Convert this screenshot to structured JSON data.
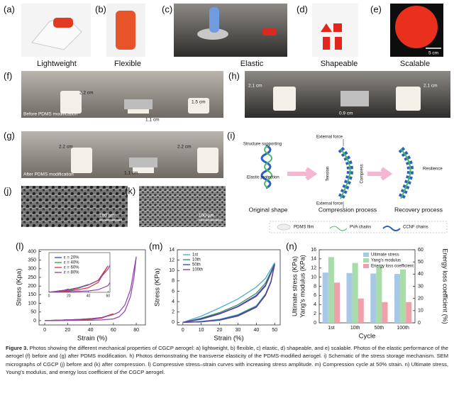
{
  "panels": [
    {
      "label": "(a)",
      "caption": "Lightweight"
    },
    {
      "label": "(b)",
      "caption": "Flexible"
    },
    {
      "label": "(c)",
      "caption": "Elastic"
    },
    {
      "label": "(d)",
      "caption": "Shapeable"
    },
    {
      "label": "(e)",
      "caption": "Scalable",
      "scale_bar": "5 cm"
    },
    {
      "label": "(f)",
      "stage": "Before PDMS modification",
      "heights": [
        "2.2 cm",
        "1.1 cm",
        "1.5 cm"
      ]
    },
    {
      "label": "(h)",
      "heights": [
        "2.1 cm",
        "0.9 cm",
        "2.1 cm"
      ]
    },
    {
      "label": "(g)",
      "stage": "After PDMS modification",
      "heights": [
        "2.2 cm",
        "1.1 cm",
        "2.2 cm"
      ]
    },
    {
      "label": "(i)"
    },
    {
      "label": "(j)",
      "scale_bar": "100 µm"
    },
    {
      "label": "(k)",
      "scale_bar": "100 µm"
    },
    {
      "label": "(l)"
    },
    {
      "label": "(m)"
    },
    {
      "label": "(n)"
    }
  ],
  "schematic": {
    "labels": [
      "Structure supporting",
      "Elastic protection",
      "External force",
      "Tension",
      "Compress",
      "External force",
      "Resilience"
    ],
    "stages": [
      "Original shape",
      "Compression process",
      "Recovery process"
    ],
    "legend": [
      "PDMS film",
      "PVA chains",
      "CCNF chains"
    ]
  },
  "chart_data": [
    {
      "type": "line",
      "xlabel": "Strain (%)",
      "ylabel": "Stress (Kpa)",
      "xlim": [
        -5,
        88
      ],
      "ylim": [
        -25,
        410
      ],
      "xticks": [
        0,
        20,
        40,
        60,
        80
      ],
      "yticks": [
        0,
        50,
        100,
        150,
        200,
        250,
        300,
        350,
        400
      ],
      "inset": {
        "xlim": [
          0,
          62
        ],
        "ylim": [
          0,
          60
        ],
        "xticks": [
          0,
          20,
          40,
          60
        ]
      },
      "series": [
        {
          "name": "ε = 20%",
          "color": "#2b4bb5",
          "x": [
            0,
            5,
            10,
            15,
            20,
            15,
            10,
            5,
            0
          ],
          "values": [
            0,
            1,
            2,
            3,
            5,
            3,
            1.5,
            0.5,
            0
          ]
        },
        {
          "name": "ε = 40%",
          "color": "#3d9a3d",
          "x": [
            0,
            10,
            20,
            30,
            40,
            30,
            20,
            10,
            0
          ],
          "values": [
            0,
            2,
            4,
            7,
            12,
            6,
            3,
            1,
            0
          ]
        },
        {
          "name": "ε = 60%",
          "color": "#d23b3b",
          "x": [
            0,
            10,
            20,
            30,
            40,
            50,
            60,
            50,
            40,
            30,
            20,
            10,
            0
          ],
          "values": [
            0,
            2,
            4,
            7,
            11,
            18,
            40,
            15,
            7,
            4,
            2,
            1,
            0
          ]
        },
        {
          "name": "ε = 80%",
          "color": "#8e44ad",
          "x": [
            0,
            10,
            20,
            30,
            40,
            50,
            60,
            65,
            70,
            75,
            80,
            78,
            75,
            70,
            65,
            60,
            50,
            40,
            20,
            0
          ],
          "values": [
            0,
            2,
            4,
            7,
            11,
            18,
            35,
            50,
            90,
            180,
            370,
            250,
            140,
            55,
            22,
            10,
            4,
            2,
            1,
            0
          ]
        }
      ]
    },
    {
      "type": "line",
      "xlabel": "Strain (%)",
      "ylabel": "Stress (KPa)",
      "xlim": [
        -3,
        53
      ],
      "ylim": [
        -0.5,
        14
      ],
      "xticks": [
        0,
        10,
        20,
        30,
        40,
        50
      ],
      "yticks": [
        0,
        2,
        4,
        6,
        8,
        10,
        12,
        14
      ],
      "series": [
        {
          "name": "1st",
          "color": "#3fa7d6",
          "x": [
            0,
            10,
            20,
            30,
            40,
            45,
            50,
            48,
            45,
            40,
            30,
            20,
            10,
            0
          ],
          "values": [
            0,
            1.2,
            2.8,
            4.5,
            6.8,
            8.5,
            11.5,
            8,
            5.5,
            3.2,
            1.5,
            0.6,
            0.2,
            0
          ]
        },
        {
          "name": "10th",
          "color": "#2e8b57",
          "x": [
            0,
            10,
            20,
            30,
            40,
            45,
            50,
            48,
            45,
            40,
            30,
            20,
            10,
            0
          ],
          "values": [
            0,
            0.8,
            1.9,
            3.4,
            5.6,
            7.6,
            11.3,
            8,
            5.4,
            3.1,
            1.4,
            0.5,
            0.1,
            0
          ]
        },
        {
          "name": "50th",
          "color": "#2a4fb0",
          "x": [
            0,
            10,
            20,
            30,
            40,
            45,
            50,
            48,
            45,
            40,
            30,
            20,
            10,
            0
          ],
          "values": [
            0,
            0.7,
            1.7,
            3.1,
            5.2,
            7.2,
            11.2,
            7.9,
            5.3,
            3,
            1.3,
            0.5,
            0.1,
            0
          ]
        },
        {
          "name": "100th",
          "color": "#6a3d9a",
          "x": [
            0,
            10,
            20,
            30,
            40,
            45,
            50,
            48,
            45,
            40,
            30,
            20,
            10,
            0
          ],
          "values": [
            0,
            0.6,
            1.6,
            3,
            5,
            7,
            11.1,
            7.8,
            5.2,
            2.9,
            1.2,
            0.4,
            0.1,
            0
          ]
        }
      ]
    },
    {
      "type": "bar",
      "xlabel": "Cycle",
      "ylabel": [
        "Ultimate stress (KPa)",
        "Yang's modulus (KPa)"
      ],
      "y2label": "Energy loss coefficient (%)",
      "categories": [
        "1st",
        "10th",
        "50th",
        "100th"
      ],
      "ylim": [
        0,
        16
      ],
      "yticks": [
        0,
        2,
        4,
        6,
        8,
        10,
        12,
        14,
        16
      ],
      "y2lim": [
        0,
        60
      ],
      "y2ticks": [
        0,
        10,
        20,
        30,
        40,
        50,
        60
      ],
      "series": [
        {
          "name": "Ultimate stress",
          "color": "#a8c8e8",
          "values": [
            11,
            10.9,
            10.8,
            10.7
          ]
        },
        {
          "name": "Yang's modulus",
          "color": "#a8dca8",
          "values": [
            14.4,
            13.1,
            12.3,
            11.7
          ]
        },
        {
          "name": "Energy loss coefficient",
          "color": "#f0a0a8",
          "axis": "y2",
          "values": [
            33,
            20,
            17,
            17
          ]
        }
      ]
    }
  ],
  "caption": {
    "label": "Figure 3.",
    "text": "Photos showing the different mechanical properties of CGCP aerogel: a) lightweight, b) flexible, c) elastic, d) shapeable, and e) scalable. Photos of the elastic performance of the aerogel (f) before and (g) after PDMS modification. h) Photos demonstrating the transverse elasticity of the PDMS-modified aerogel. i) Schematic of the stress storage mechanism. SEM micrographs of CGCP (j) before and (k) after compression. l) Compressive stress–strain curves with increasing stress amplitude. m) Compression cycle at 50% strain. n) Ultimate stress, Young's modulus, and energy loss coefficient of the CGCP aerogel."
  }
}
